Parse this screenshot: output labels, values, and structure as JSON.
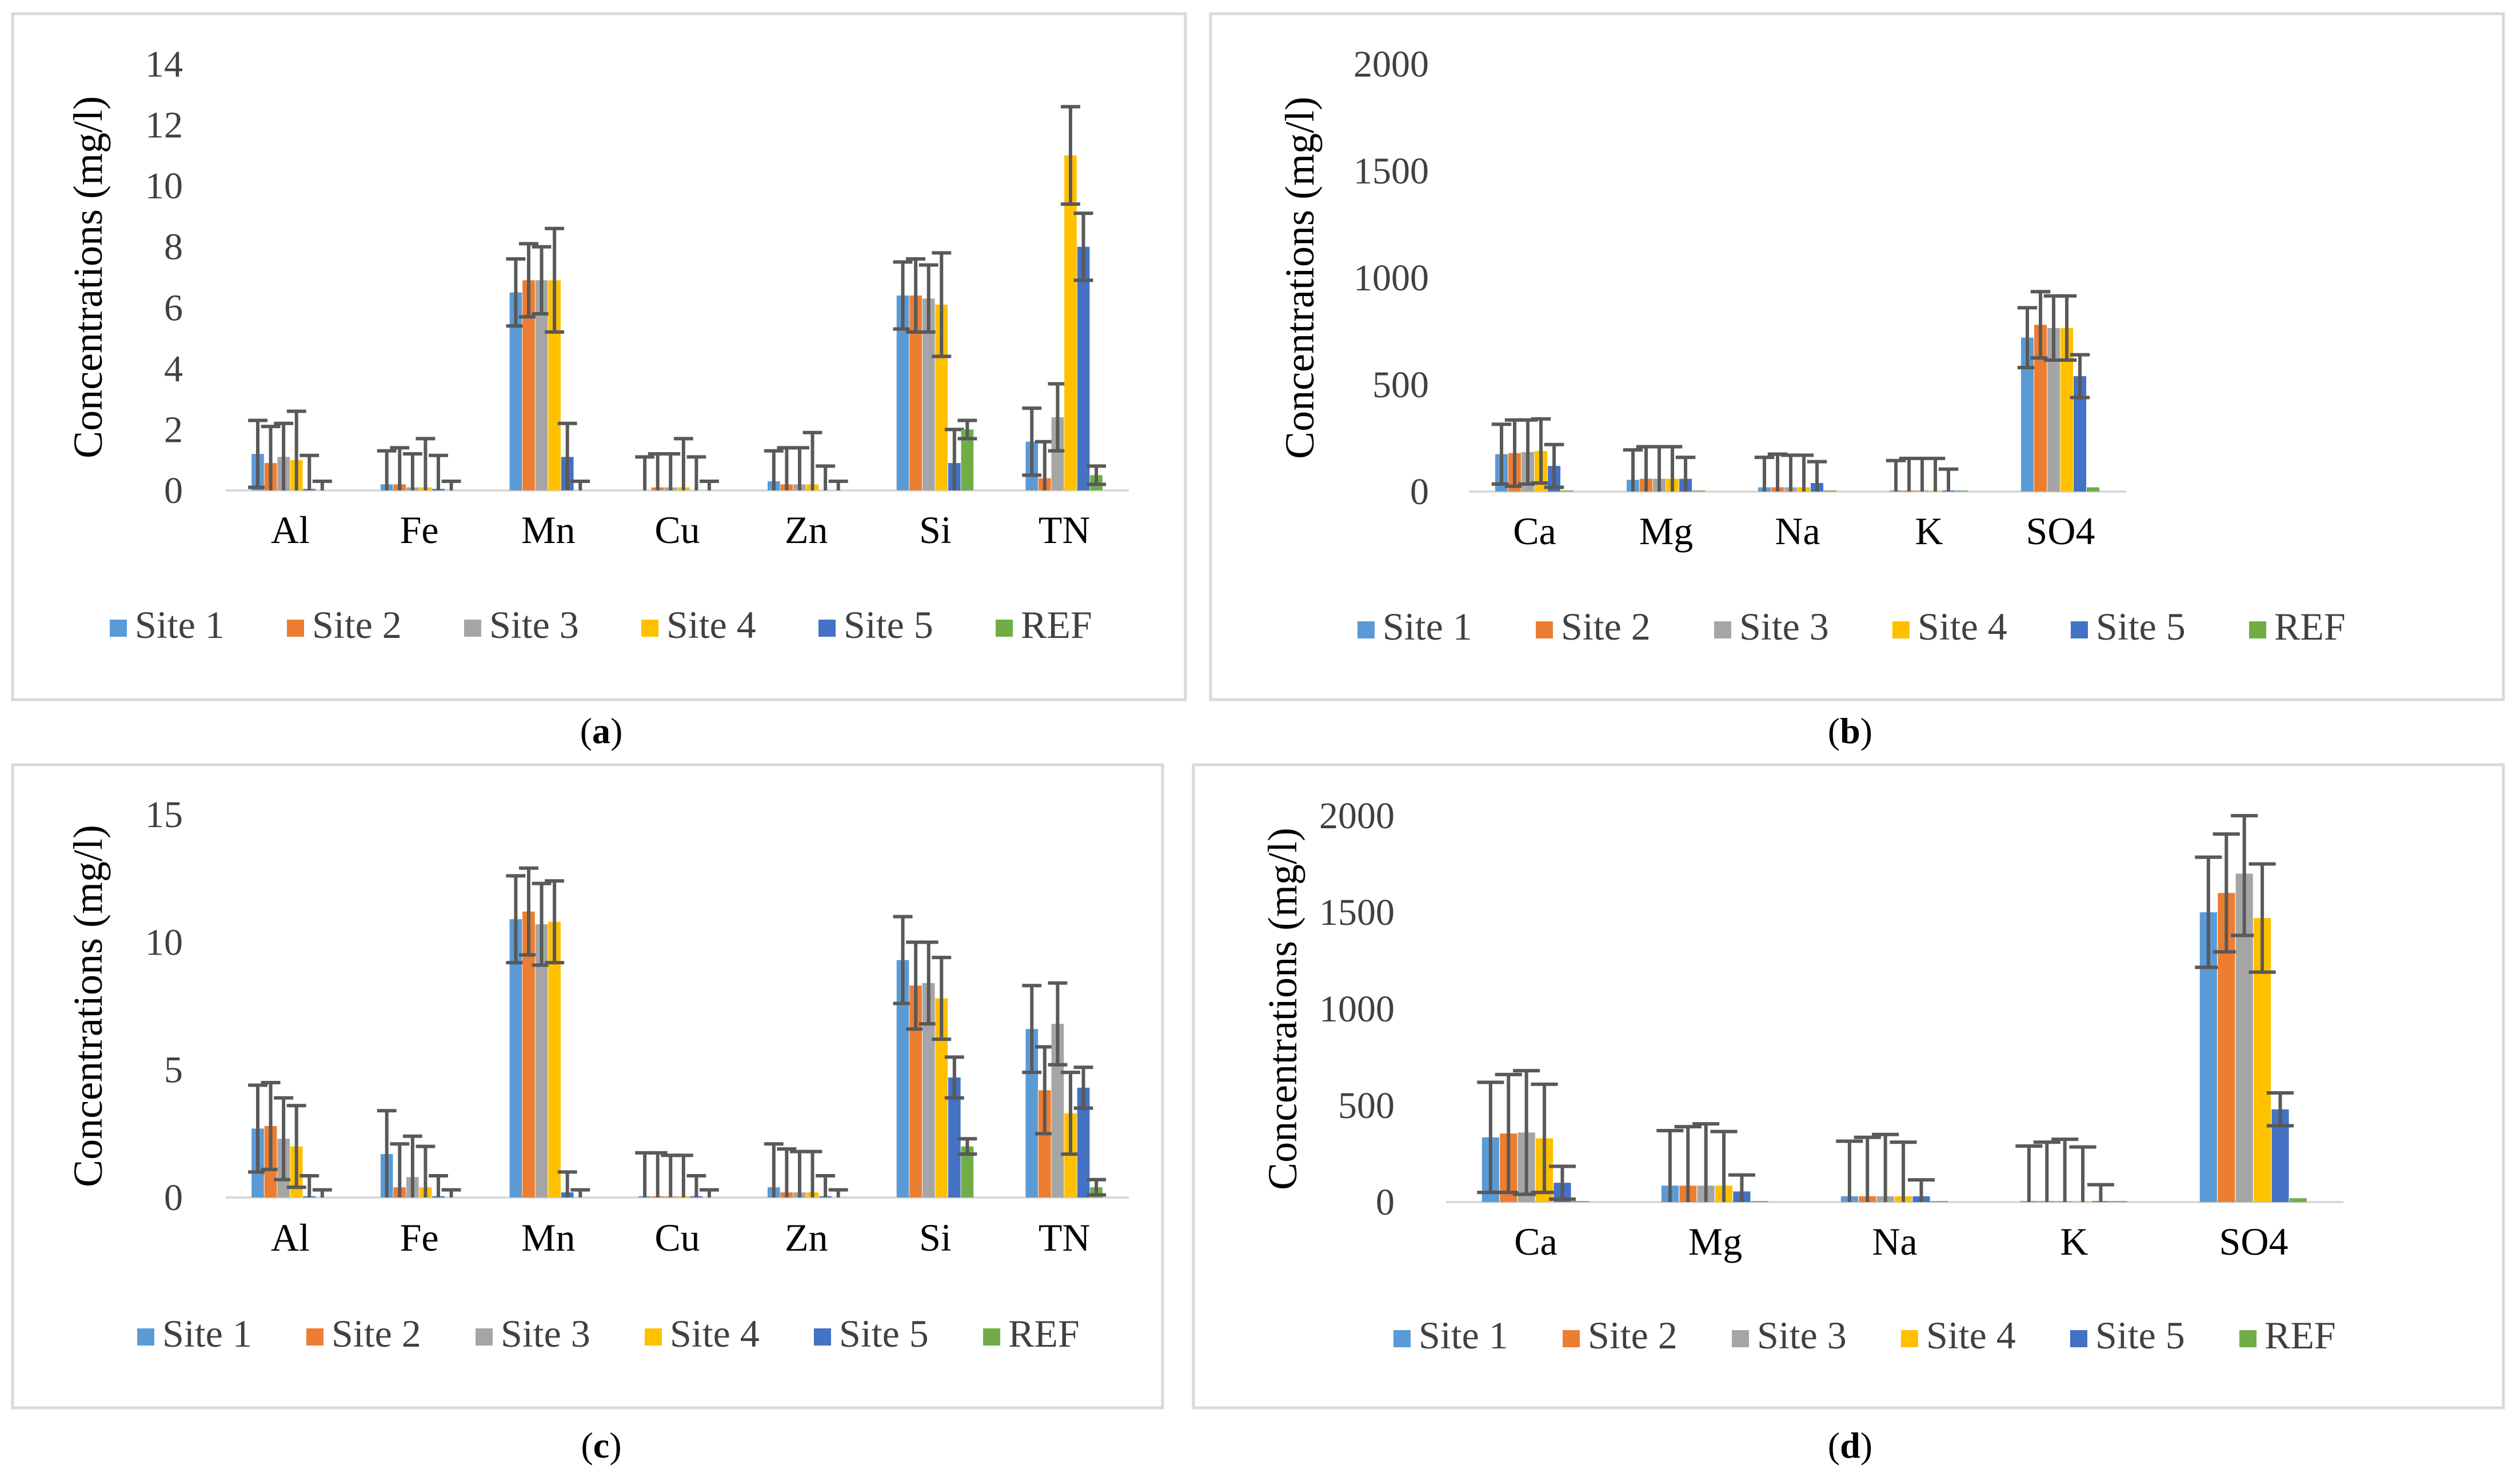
{
  "legend": {
    "series": [
      {
        "name": "Site 1",
        "color": "#5B9BD5"
      },
      {
        "name": "Site 2",
        "color": "#ED7D31"
      },
      {
        "name": "Site 3",
        "color": "#A5A5A5"
      },
      {
        "name": "Site 4",
        "color": "#FFC000"
      },
      {
        "name": "Site 5",
        "color": "#4472C4"
      },
      {
        "name": "REF",
        "color": "#70AD47"
      }
    ]
  },
  "error_bar_color": "#595959",
  "chart_data": [
    {
      "id": "a",
      "panel_label": "a",
      "type": "bar",
      "ylabel": "Concentrations (mg/l)",
      "ylim": [
        0,
        14
      ],
      "yticks": [
        0,
        2,
        4,
        6,
        8,
        10,
        12,
        14
      ],
      "categories": [
        "Al",
        "Fe",
        "Mn",
        "Cu",
        "Zn",
        "Si",
        "TN"
      ],
      "series": [
        {
          "name": "Site 1",
          "values": [
            1.2,
            0.2,
            6.5,
            0.0,
            0.3,
            6.4,
            1.6
          ],
          "err": [
            1.1,
            1.1,
            1.1,
            1.1,
            1.0,
            1.1,
            1.1
          ]
        },
        {
          "name": "Site 2",
          "values": [
            0.9,
            0.2,
            6.9,
            0.1,
            0.2,
            6.4,
            0.4
          ],
          "err": [
            1.2,
            1.2,
            1.2,
            1.1,
            1.2,
            1.2,
            1.2
          ]
        },
        {
          "name": "Site 3",
          "values": [
            1.1,
            0.1,
            6.9,
            0.1,
            0.2,
            6.3,
            2.4
          ],
          "err": [
            1.1,
            1.1,
            1.1,
            1.1,
            1.2,
            1.1,
            1.1
          ]
        },
        {
          "name": "Site 4",
          "values": [
            1.0,
            0.1,
            6.9,
            0.1,
            0.2,
            6.1,
            11.0
          ],
          "err": [
            1.6,
            1.6,
            1.7,
            1.6,
            1.7,
            1.7,
            1.6
          ]
        },
        {
          "name": "Site 5",
          "values": [
            0.05,
            0.05,
            1.1,
            0.0,
            0.0,
            0.9,
            8.0
          ],
          "err": [
            1.1,
            1.1,
            1.1,
            1.1,
            0.8,
            1.1,
            1.1
          ]
        },
        {
          "name": "REF",
          "values": [
            0.0,
            0.0,
            0.0,
            0.0,
            0.0,
            2.0,
            0.5
          ],
          "err": [
            0.3,
            0.3,
            0.3,
            0.3,
            0.3,
            0.3,
            0.3
          ]
        }
      ]
    },
    {
      "id": "b",
      "panel_label": "b",
      "type": "bar",
      "ylabel": "Concentrations (mg/l)",
      "ylim": [
        0,
        2000
      ],
      "yticks": [
        0,
        500,
        1000,
        1500,
        2000
      ],
      "categories": [
        "Ca",
        "Mg",
        "Na",
        "K",
        "SO4"
      ],
      "series": [
        {
          "name": "Site 1",
          "values": [
            175,
            55,
            20,
            5,
            720
          ],
          "err": [
            140,
            140,
            140,
            140,
            140
          ]
        },
        {
          "name": "Site 2",
          "values": [
            180,
            60,
            20,
            5,
            780
          ],
          "err": [
            155,
            150,
            155,
            150,
            155
          ]
        },
        {
          "name": "Site 3",
          "values": [
            185,
            60,
            20,
            5,
            765
          ],
          "err": [
            150,
            150,
            150,
            150,
            150
          ]
        },
        {
          "name": "Site 4",
          "values": [
            190,
            60,
            20,
            5,
            765
          ],
          "err": [
            150,
            150,
            150,
            150,
            150
          ]
        },
        {
          "name": "Site 5",
          "values": [
            120,
            60,
            40,
            5,
            540
          ],
          "err": [
            100,
            100,
            100,
            100,
            100
          ]
        },
        {
          "name": "REF",
          "values": [
            5,
            5,
            5,
            5,
            20
          ],
          "err": [
            0,
            0,
            0,
            0,
            0
          ]
        }
      ]
    },
    {
      "id": "c",
      "panel_label": "c",
      "type": "bar",
      "ylabel": "Concentrations (mg/l)",
      "ylim": [
        0,
        15
      ],
      "yticks": [
        0,
        5,
        10,
        15
      ],
      "categories": [
        "Al",
        "Fe",
        "Mn",
        "Cu",
        "Zn",
        "Si",
        "TN"
      ],
      "series": [
        {
          "name": "Site 1",
          "values": [
            2.7,
            1.7,
            10.9,
            0.05,
            0.4,
            9.3,
            6.6
          ],
          "err": [
            1.7,
            1.7,
            1.7,
            1.7,
            1.7,
            1.7,
            1.7
          ]
        },
        {
          "name": "Site 2",
          "values": [
            2.8,
            0.4,
            11.2,
            0.05,
            0.2,
            8.3,
            4.2
          ],
          "err": [
            1.7,
            1.7,
            1.7,
            1.7,
            1.7,
            1.7,
            1.7
          ]
        },
        {
          "name": "Site 3",
          "values": [
            2.3,
            0.8,
            10.7,
            0.05,
            0.2,
            8.4,
            6.8
          ],
          "err": [
            1.6,
            1.6,
            1.6,
            1.6,
            1.6,
            1.6,
            1.6
          ]
        },
        {
          "name": "Site 4",
          "values": [
            2.0,
            0.4,
            10.8,
            0.05,
            0.2,
            7.8,
            3.3
          ],
          "err": [
            1.6,
            1.6,
            1.6,
            1.6,
            1.6,
            1.6,
            1.6
          ]
        },
        {
          "name": "Site 5",
          "values": [
            0.05,
            0.05,
            0.2,
            0.05,
            0.05,
            4.7,
            4.3
          ],
          "err": [
            0.8,
            0.8,
            0.8,
            0.8,
            0.8,
            0.8,
            0.8
          ]
        },
        {
          "name": "REF",
          "values": [
            0.0,
            0.0,
            0.0,
            0.0,
            0.0,
            2.0,
            0.4
          ],
          "err": [
            0.3,
            0.3,
            0.3,
            0.3,
            0.3,
            0.3,
            0.3
          ]
        }
      ]
    },
    {
      "id": "d",
      "panel_label": "d",
      "type": "bar",
      "ylabel": "Concentrations (mg/l)",
      "ylim": [
        0,
        2000
      ],
      "yticks": [
        0,
        500,
        1000,
        1500,
        2000
      ],
      "categories": [
        "Ca",
        "Mg",
        "Na",
        "K",
        "SO4"
      ],
      "series": [
        {
          "name": "Site 1",
          "values": [
            335,
            85,
            30,
            5,
            1500
          ],
          "err": [
            285,
            285,
            285,
            285,
            285
          ]
        },
        {
          "name": "Site 2",
          "values": [
            355,
            85,
            30,
            5,
            1600
          ],
          "err": [
            305,
            305,
            305,
            305,
            305
          ]
        },
        {
          "name": "Site 3",
          "values": [
            360,
            85,
            30,
            5,
            1700
          ],
          "err": [
            320,
            320,
            320,
            320,
            320
          ]
        },
        {
          "name": "Site 4",
          "values": [
            330,
            85,
            30,
            5,
            1470
          ],
          "err": [
            280,
            280,
            280,
            280,
            280
          ]
        },
        {
          "name": "Site 5",
          "values": [
            100,
            55,
            30,
            5,
            480
          ],
          "err": [
            85,
            85,
            85,
            85,
            85
          ]
        },
        {
          "name": "REF",
          "values": [
            5,
            5,
            5,
            5,
            20
          ],
          "err": [
            0,
            0,
            0,
            0,
            0
          ]
        }
      ]
    }
  ]
}
